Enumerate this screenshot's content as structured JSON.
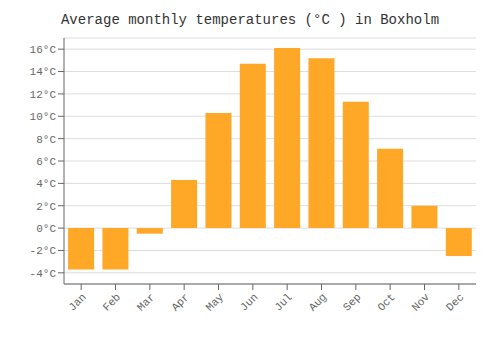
{
  "chart_data": {
    "type": "bar",
    "title": "Average monthly temperatures (°C ) in Boxholm",
    "categories": [
      "Jan",
      "Feb",
      "Mar",
      "Apr",
      "May",
      "Jun",
      "Jul",
      "Aug",
      "Sep",
      "Oct",
      "Nov",
      "Dec"
    ],
    "values": [
      -3.7,
      -3.7,
      -0.5,
      4.3,
      10.3,
      14.7,
      16.1,
      15.2,
      11.3,
      7.1,
      2.0,
      -2.5
    ],
    "color": "#FFA726",
    "ylim": [
      -5,
      17
    ],
    "yticks": [
      {
        "value": -4,
        "label": "-4°C"
      },
      {
        "value": -2,
        "label": "-2°C"
      },
      {
        "value": 0,
        "label": "0°C"
      },
      {
        "value": 2,
        "label": "2°C"
      },
      {
        "value": 4,
        "label": "4°C"
      },
      {
        "value": 6,
        "label": "6°C"
      },
      {
        "value": 8,
        "label": "8°C"
      },
      {
        "value": 10,
        "label": "10°C"
      },
      {
        "value": 12,
        "label": "12°C"
      },
      {
        "value": 14,
        "label": "14°C"
      },
      {
        "value": 16,
        "label": "16°C"
      }
    ],
    "grid": true
  }
}
